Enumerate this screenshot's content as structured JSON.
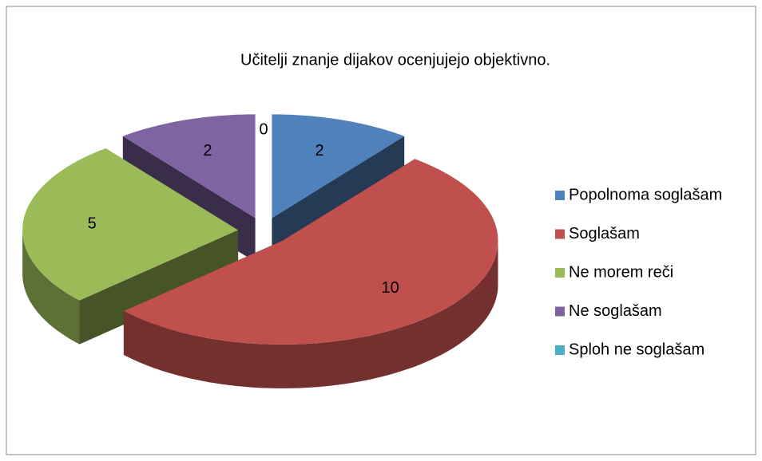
{
  "chart_data": {
    "type": "pie",
    "title": "Učitelji znanje dijakov ocenjujejo objektivno.",
    "categories": [
      "Popolnoma soglašam",
      "Soglašam",
      "Ne morem reči",
      "Ne soglašam",
      "Sploh ne soglašam"
    ],
    "values": [
      2,
      10,
      5,
      2,
      0
    ],
    "colors": [
      "#4f81bd",
      "#c0504d",
      "#9bbb59",
      "#8064a2",
      "#4bacc6"
    ],
    "legend": "right"
  }
}
